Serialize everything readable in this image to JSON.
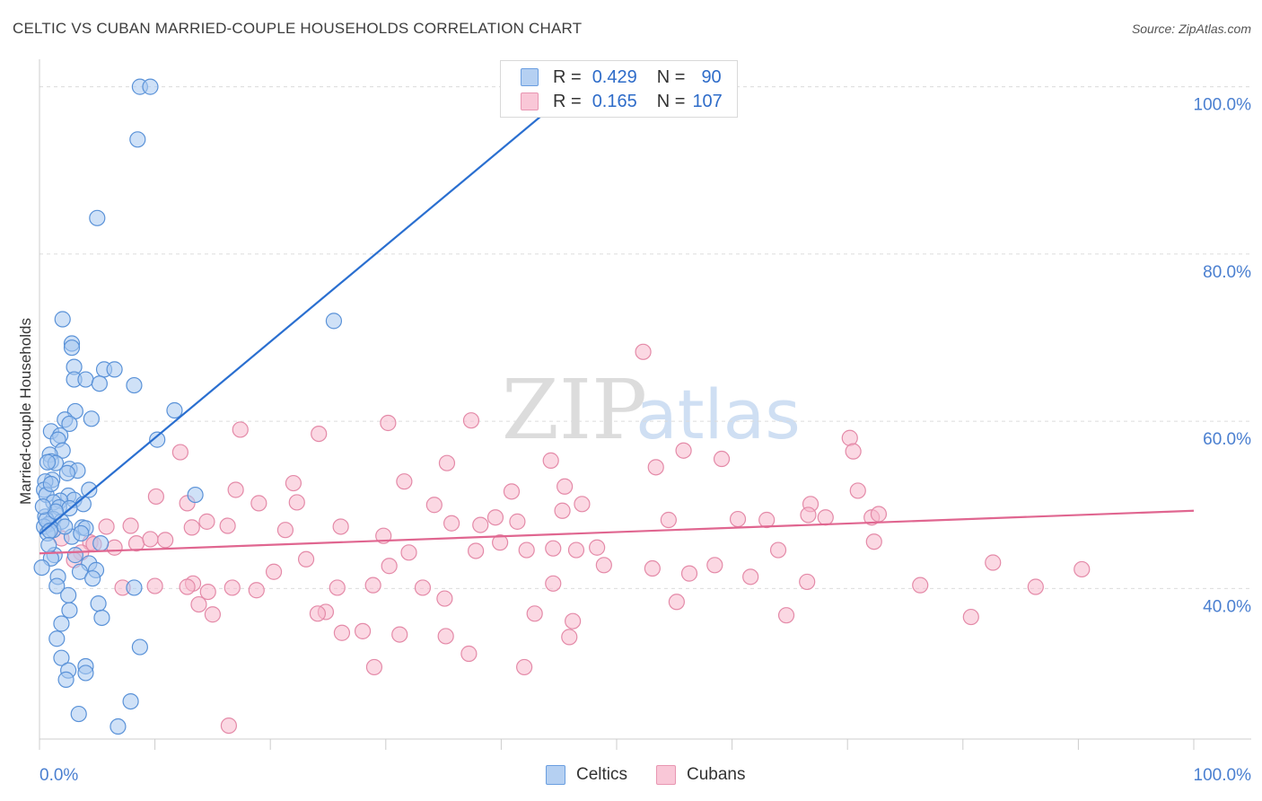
{
  "title": "CELTIC VS CUBAN MARRIED-COUPLE HOUSEHOLDS CORRELATION CHART",
  "source": "Source: ZipAtlas.com",
  "colors": {
    "celtic_fill": "#a8c8f0",
    "celtic_stroke": "#5a92d8",
    "celtic_line": "#2a6fd0",
    "cuban_fill": "#f7b8cc",
    "cuban_stroke": "#e48aa8",
    "cuban_line": "#e06690",
    "axis_text": "#4a7fd0",
    "grid": "#dcdcdc"
  },
  "legend": {
    "celtic": {
      "r_label": "R =",
      "r_value": "0.429",
      "n_label": "N =",
      "n_value": "90"
    },
    "cuban": {
      "r_label": "R =",
      "r_value": "0.165",
      "n_label": "N =",
      "n_value": "107"
    }
  },
  "bottom_legend": {
    "celtic": "Celtics",
    "cuban": "Cubans"
  },
  "watermark": {
    "zip": "ZIP",
    "atlas": "atlas"
  },
  "chart_data": {
    "type": "scatter",
    "title": "CELTIC VS CUBAN MARRIED-COUPLE HOUSEHOLDS CORRELATION CHART",
    "xlabel": "",
    "ylabel": "Married-couple Households",
    "xlim": [
      0,
      100
    ],
    "ylim": [
      22,
      102
    ],
    "x_tick_labels": [
      "0.0%",
      "100.0%"
    ],
    "y_ticks": [
      40,
      60,
      80,
      100
    ],
    "y_tick_labels": [
      "40.0%",
      "60.0%",
      "80.0%",
      "100.0%"
    ],
    "series": [
      {
        "name": "Celtics",
        "trend": {
          "x0": 0,
          "y0": 46.5,
          "x1": 46.5,
          "y1": 100
        },
        "points": [
          [
            8.7,
            100
          ],
          [
            9.6,
            100
          ],
          [
            8.5,
            93.7
          ],
          [
            5.0,
            84.3
          ],
          [
            25.5,
            72
          ],
          [
            2.0,
            72.2
          ],
          [
            2.8,
            69.3
          ],
          [
            2.8,
            68.8
          ],
          [
            3.0,
            66.5
          ],
          [
            5.6,
            66.2
          ],
          [
            6.5,
            66.2
          ],
          [
            3.0,
            65
          ],
          [
            4.0,
            65
          ],
          [
            5.2,
            64.5
          ],
          [
            8.2,
            64.3
          ],
          [
            11.7,
            61.3
          ],
          [
            3.1,
            61.2
          ],
          [
            4.5,
            60.3
          ],
          [
            2.2,
            60.2
          ],
          [
            2.6,
            59.7
          ],
          [
            1.0,
            58.8
          ],
          [
            1.8,
            58.3
          ],
          [
            1.6,
            57.8
          ],
          [
            10.2,
            57.8
          ],
          [
            2.0,
            56.5
          ],
          [
            0.9,
            56.0
          ],
          [
            1.0,
            55.2
          ],
          [
            1.4,
            55.0
          ],
          [
            0.7,
            55.1
          ],
          [
            2.6,
            54.3
          ],
          [
            3.3,
            54.1
          ],
          [
            2.4,
            53.8
          ],
          [
            1.1,
            53.0
          ],
          [
            0.5,
            52.8
          ],
          [
            0.4,
            51.8
          ],
          [
            4.3,
            51.8
          ],
          [
            0.6,
            51.2
          ],
          [
            13.5,
            51.2
          ],
          [
            2.5,
            51.1
          ],
          [
            3.0,
            50.6
          ],
          [
            1.8,
            50.5
          ],
          [
            1.2,
            50.3
          ],
          [
            3.8,
            50.1
          ],
          [
            1.7,
            49.7
          ],
          [
            2.6,
            49.6
          ],
          [
            0.5,
            48.6
          ],
          [
            1.2,
            48.3
          ],
          [
            1.9,
            48.0
          ],
          [
            0.8,
            47.7
          ],
          [
            0.4,
            47.4
          ],
          [
            3.7,
            47.3
          ],
          [
            4.0,
            47.2
          ],
          [
            1.2,
            47.0
          ],
          [
            0.7,
            46.6
          ],
          [
            2.8,
            46.2
          ],
          [
            5.3,
            45.4
          ],
          [
            1.3,
            44.0
          ],
          [
            3.1,
            44.0
          ],
          [
            1.0,
            43.6
          ],
          [
            4.3,
            43.0
          ],
          [
            4.9,
            42.2
          ],
          [
            3.5,
            42.0
          ],
          [
            0.2,
            42.5
          ],
          [
            1.6,
            41.4
          ],
          [
            4.6,
            41.2
          ],
          [
            1.5,
            40.3
          ],
          [
            8.2,
            40.1
          ],
          [
            2.5,
            39.2
          ],
          [
            5.1,
            38.2
          ],
          [
            2.6,
            37.4
          ],
          [
            5.4,
            36.5
          ],
          [
            1.9,
            35.8
          ],
          [
            1.5,
            34.0
          ],
          [
            8.7,
            33.0
          ],
          [
            1.9,
            31.7
          ],
          [
            4.0,
            30.7
          ],
          [
            2.5,
            30.2
          ],
          [
            4.0,
            29.9
          ],
          [
            2.3,
            29.1
          ],
          [
            7.9,
            26.5
          ],
          [
            3.4,
            25.0
          ],
          [
            6.8,
            23.5
          ],
          [
            0.6,
            48.2
          ],
          [
            0.9,
            46.9
          ],
          [
            1.4,
            49.2
          ],
          [
            2.2,
            47.4
          ],
          [
            0.3,
            49.8
          ],
          [
            1.0,
            52.5
          ],
          [
            0.8,
            45.2
          ],
          [
            3.6,
            46.6
          ]
        ]
      },
      {
        "name": "Cubans",
        "trend": {
          "x0": 0,
          "y0": 44.2,
          "x1": 100,
          "y1": 49.3
        },
        "points": [
          [
            52.3,
            68.3
          ],
          [
            17.4,
            59.0
          ],
          [
            24.2,
            58.5
          ],
          [
            30.2,
            59.8
          ],
          [
            37.4,
            60.1
          ],
          [
            70.2,
            58.0
          ],
          [
            12.2,
            56.3
          ],
          [
            55.8,
            56.5
          ],
          [
            70.5,
            56.4
          ],
          [
            59.1,
            55.5
          ],
          [
            44.3,
            55.3
          ],
          [
            35.3,
            55.0
          ],
          [
            22.0,
            52.6
          ],
          [
            31.6,
            52.8
          ],
          [
            53.4,
            54.5
          ],
          [
            17.0,
            51.8
          ],
          [
            45.5,
            52.2
          ],
          [
            66.8,
            50.1
          ],
          [
            70.9,
            51.7
          ],
          [
            10.1,
            51.0
          ],
          [
            12.8,
            50.2
          ],
          [
            19.0,
            50.2
          ],
          [
            22.3,
            50.3
          ],
          [
            34.2,
            50.0
          ],
          [
            40.9,
            51.6
          ],
          [
            47.0,
            50.1
          ],
          [
            45.3,
            49.3
          ],
          [
            54.5,
            48.2
          ],
          [
            39.5,
            48.5
          ],
          [
            63.0,
            48.2
          ],
          [
            68.1,
            48.5
          ],
          [
            60.5,
            48.3
          ],
          [
            72.1,
            48.5
          ],
          [
            66.6,
            48.8
          ],
          [
            72.7,
            48.9
          ],
          [
            7.9,
            47.5
          ],
          [
            13.2,
            47.3
          ],
          [
            16.3,
            47.5
          ],
          [
            21.3,
            47.0
          ],
          [
            26.1,
            47.4
          ],
          [
            29.8,
            46.3
          ],
          [
            35.7,
            47.8
          ],
          [
            38.2,
            47.6
          ],
          [
            41.4,
            48.0
          ],
          [
            14.5,
            48.0
          ],
          [
            5.8,
            47.4
          ],
          [
            10.9,
            45.8
          ],
          [
            8.4,
            45.4
          ],
          [
            9.6,
            45.9
          ],
          [
            4.4,
            45.5
          ],
          [
            4.7,
            45.3
          ],
          [
            6.5,
            44.9
          ],
          [
            37.8,
            44.5
          ],
          [
            39.9,
            45.5
          ],
          [
            42.2,
            44.6
          ],
          [
            48.3,
            44.9
          ],
          [
            64.0,
            44.6
          ],
          [
            72.3,
            45.6
          ],
          [
            82.6,
            43.1
          ],
          [
            90.3,
            42.3
          ],
          [
            48.9,
            42.8
          ],
          [
            44.5,
            44.8
          ],
          [
            46.5,
            44.6
          ],
          [
            53.1,
            42.4
          ],
          [
            56.3,
            41.8
          ],
          [
            61.6,
            41.4
          ],
          [
            58.5,
            42.8
          ],
          [
            66.5,
            40.8
          ],
          [
            76.3,
            40.4
          ],
          [
            10.0,
            40.3
          ],
          [
            13.3,
            40.6
          ],
          [
            16.7,
            40.1
          ],
          [
            20.3,
            42.0
          ],
          [
            23.1,
            43.5
          ],
          [
            25.8,
            40.1
          ],
          [
            30.3,
            42.7
          ],
          [
            32.0,
            44.3
          ],
          [
            24.8,
            37.2
          ],
          [
            18.8,
            39.8
          ],
          [
            14.6,
            39.6
          ],
          [
            13.8,
            38.1
          ],
          [
            15.0,
            36.9
          ],
          [
            24.1,
            37.0
          ],
          [
            28.9,
            40.4
          ],
          [
            31.2,
            34.5
          ],
          [
            35.2,
            34.3
          ],
          [
            42.9,
            37.0
          ],
          [
            37.2,
            32.2
          ],
          [
            42.0,
            30.6
          ],
          [
            26.2,
            34.7
          ],
          [
            29.0,
            30.6
          ],
          [
            45.9,
            34.2
          ],
          [
            46.2,
            36.1
          ],
          [
            28.0,
            34.9
          ],
          [
            33.2,
            40.1
          ],
          [
            35.1,
            38.8
          ],
          [
            44.5,
            40.6
          ],
          [
            55.2,
            38.4
          ],
          [
            64.7,
            36.8
          ],
          [
            80.7,
            36.6
          ],
          [
            86.3,
            40.2
          ],
          [
            16.4,
            23.6
          ],
          [
            12.8,
            40.2
          ],
          [
            7.2,
            40.1
          ],
          [
            3.6,
            44.3
          ],
          [
            3.0,
            43.4
          ],
          [
            1.9,
            46.0
          ]
        ]
      }
    ]
  }
}
